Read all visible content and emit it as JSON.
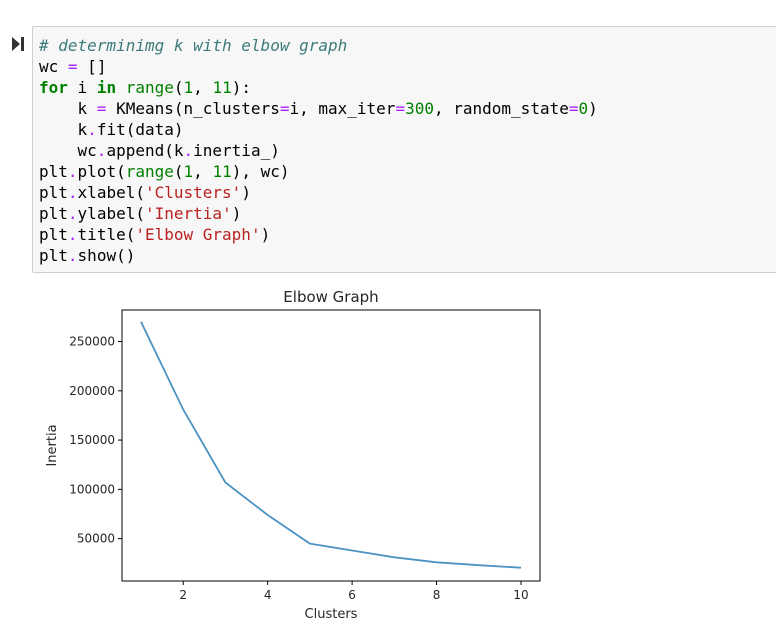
{
  "notebook": {
    "run_icon": "run-cell-icon",
    "code_lines": [
      [
        {
          "t": "# determinimg k with elbow graph",
          "c": "cm"
        }
      ],
      [
        {
          "t": "wc "
        },
        {
          "t": "=",
          "c": "op"
        },
        {
          "t": " []"
        }
      ],
      [
        {
          "t": "for",
          "c": "kw"
        },
        {
          "t": " i "
        },
        {
          "t": "in",
          "c": "kw"
        },
        {
          "t": " "
        },
        {
          "t": "range",
          "c": "bi"
        },
        {
          "t": "("
        },
        {
          "t": "1",
          "c": "num"
        },
        {
          "t": ", "
        },
        {
          "t": "11",
          "c": "num"
        },
        {
          "t": "):"
        }
      ],
      [
        {
          "t": "    k "
        },
        {
          "t": "=",
          "c": "op"
        },
        {
          "t": " KMeans(n_clusters"
        },
        {
          "t": "=",
          "c": "op"
        },
        {
          "t": "i, max_iter"
        },
        {
          "t": "=",
          "c": "op"
        },
        {
          "t": "300",
          "c": "num"
        },
        {
          "t": ", random_state"
        },
        {
          "t": "=",
          "c": "op"
        },
        {
          "t": "0",
          "c": "num"
        },
        {
          "t": ")"
        }
      ],
      [
        {
          "t": "    k"
        },
        {
          "t": ".",
          "c": "op"
        },
        {
          "t": "fit(data)"
        }
      ],
      [
        {
          "t": "    wc"
        },
        {
          "t": ".",
          "c": "op"
        },
        {
          "t": "append(k"
        },
        {
          "t": ".",
          "c": "op"
        },
        {
          "t": "inertia_)"
        }
      ],
      [
        {
          "t": "plt"
        },
        {
          "t": ".",
          "c": "op"
        },
        {
          "t": "plot("
        },
        {
          "t": "range",
          "c": "bi"
        },
        {
          "t": "("
        },
        {
          "t": "1",
          "c": "num"
        },
        {
          "t": ", "
        },
        {
          "t": "11",
          "c": "num"
        },
        {
          "t": "), wc)"
        }
      ],
      [
        {
          "t": "plt"
        },
        {
          "t": ".",
          "c": "op"
        },
        {
          "t": "xlabel("
        },
        {
          "t": "'Clusters'",
          "c": "str"
        },
        {
          "t": ")"
        }
      ],
      [
        {
          "t": "plt"
        },
        {
          "t": ".",
          "c": "op"
        },
        {
          "t": "ylabel("
        },
        {
          "t": "'Inertia'",
          "c": "str"
        },
        {
          "t": ")"
        }
      ],
      [
        {
          "t": "plt"
        },
        {
          "t": ".",
          "c": "op"
        },
        {
          "t": "title("
        },
        {
          "t": "'Elbow Graph'",
          "c": "str"
        },
        {
          "t": ")"
        }
      ],
      [
        {
          "t": "plt"
        },
        {
          "t": ".",
          "c": "op"
        },
        {
          "t": "show()"
        }
      ]
    ]
  },
  "chart_data": {
    "type": "line",
    "title": "Elbow Graph",
    "xlabel": "Clusters",
    "ylabel": "Inertia",
    "x": [
      1,
      2,
      3,
      4,
      5,
      6,
      7,
      8,
      9,
      10
    ],
    "series": [
      {
        "values": [
          270000,
          181000,
          107000,
          74000,
          45000,
          38000,
          31000,
          26000,
          23000,
          20500
        ],
        "color": "#4c92c3"
      }
    ],
    "xticks": [
      2,
      4,
      6,
      8,
      10
    ],
    "yticks": [
      50000,
      100000,
      150000,
      200000,
      250000
    ],
    "xlim": [
      0.55,
      10.45
    ],
    "ylim": [
      7000,
      282000
    ],
    "grid": false
  }
}
